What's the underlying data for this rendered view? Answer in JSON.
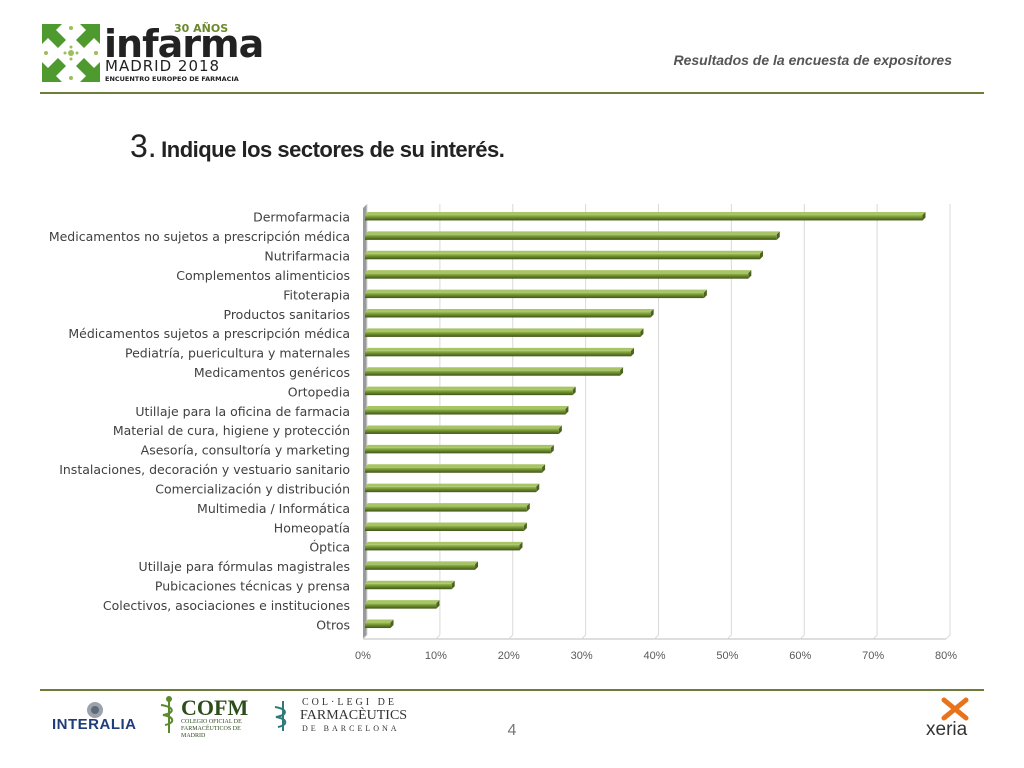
{
  "header": {
    "logo": {
      "anos": "30 AÑOS",
      "brand": "infarma",
      "city_year": "MADRID 2018",
      "tagline": "ENCUENTRO EUROPEO DE FARMACIA",
      "accent_color": "#4f9a2f"
    },
    "subtitle": "Resultados de la encuesta de expositores"
  },
  "slide": {
    "number": "3.",
    "question": "Indique los sectores de su interés."
  },
  "chart_data": {
    "type": "bar",
    "orientation": "horizontal",
    "categories": [
      "Dermofarmacia",
      "Medicamentos no sujetos a prescripción médica",
      "Nutrifarmacia",
      "Complementos alimenticios",
      "Fitoterapia",
      "Productos sanitarios",
      "Médicamentos sujetos a prescripción médica",
      "Pediatría, puericultura y maternales",
      "Medicamentos genéricos",
      "Ortopedia",
      "Utillaje para la oficina de farmacia",
      "Material de cura, higiene y protección",
      "Asesoría, consultoría y marketing",
      "Instalaciones, decoración y vestuario sanitario",
      "Comercialización y distribución",
      "Multimedia / Informática",
      "Homeopatía",
      "Óptica",
      "Utillaje para fórmulas magistrales",
      "Pubicaciones técnicas y prensa",
      "Colectivos, asociaciones e instituciones",
      "Otros"
    ],
    "values": [
      76.5,
      56.5,
      54.2,
      52.6,
      46.5,
      39.2,
      37.8,
      36.5,
      35.0,
      28.5,
      27.5,
      26.6,
      25.5,
      24.3,
      23.5,
      22.2,
      21.8,
      21.2,
      15.1,
      11.9,
      9.8,
      3.5
    ],
    "xticks": [
      "0%",
      "10%",
      "20%",
      "30%",
      "40%",
      "50%",
      "60%",
      "70%",
      "80%"
    ],
    "xlim": [
      0,
      80
    ],
    "grid": true,
    "bar_color": "#6f8e2d"
  },
  "footer": {
    "logos": [
      {
        "name": "INTERALIA"
      },
      {
        "name": "COFM",
        "sub": "COLEGIO OFICIAL DE FARMACÉUTICOS DE MADRID"
      },
      {
        "name": "COL·LEGI DE",
        "line2": "FARMACÈUTICS",
        "line3": "DE BARCELONA"
      },
      {
        "name": "xeria"
      }
    ],
    "page_number": "4"
  }
}
